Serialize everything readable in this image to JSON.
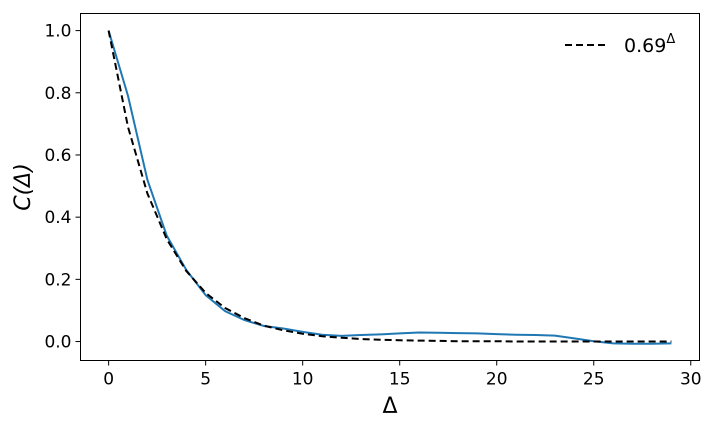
{
  "chart_data": {
    "type": "line",
    "xlabel": "Δ",
    "ylabel": "C(Δ)",
    "xlim": [
      -1.45,
      30.45
    ],
    "ylim": [
      -0.061,
      1.055
    ],
    "xticks": [
      0,
      5,
      10,
      15,
      20,
      25,
      30
    ],
    "xtick_labels": [
      "0",
      "5",
      "10",
      "15",
      "20",
      "25",
      "30"
    ],
    "yticks": [
      0.0,
      0.2,
      0.4,
      0.6,
      0.8,
      1.0
    ],
    "ytick_labels": [
      "0.0",
      "0.2",
      "0.4",
      "0.6",
      "0.8",
      "1.0"
    ],
    "grid": false,
    "legend_placement": "top-right",
    "x": [
      0,
      1,
      2,
      3,
      4,
      5,
      6,
      7,
      8,
      9,
      10,
      11,
      12,
      13,
      14,
      15,
      16,
      17,
      18,
      19,
      20,
      21,
      22,
      23,
      24,
      25,
      26,
      27,
      28,
      29
    ],
    "series": [
      {
        "color": "#1f77b4",
        "style": "solid",
        "values": [
          1.0,
          0.79,
          0.52,
          0.34,
          0.23,
          0.149,
          0.098,
          0.069,
          0.05,
          0.042,
          0.031,
          0.022,
          0.018,
          0.021,
          0.023,
          0.026,
          0.029,
          0.028,
          0.027,
          0.026,
          0.024,
          0.022,
          0.021,
          0.019,
          0.01,
          0.001,
          -0.006,
          -0.007,
          -0.007,
          -0.006
        ]
      },
      {
        "name": "0.69",
        "name_superscript": "Δ",
        "color": "#000000",
        "style": "dashed",
        "values": [
          1.0,
          0.69,
          0.476,
          0.329,
          0.227,
          0.156,
          0.108,
          0.075,
          0.051,
          0.036,
          0.025,
          0.017,
          0.012,
          0.008,
          0.006,
          0.004,
          0.003,
          0.002,
          0.001,
          0.001,
          0.001,
          0.0,
          0.0,
          0.0,
          0.0,
          0.0,
          0.0,
          0.0,
          0.0,
          0.0
        ]
      }
    ]
  }
}
